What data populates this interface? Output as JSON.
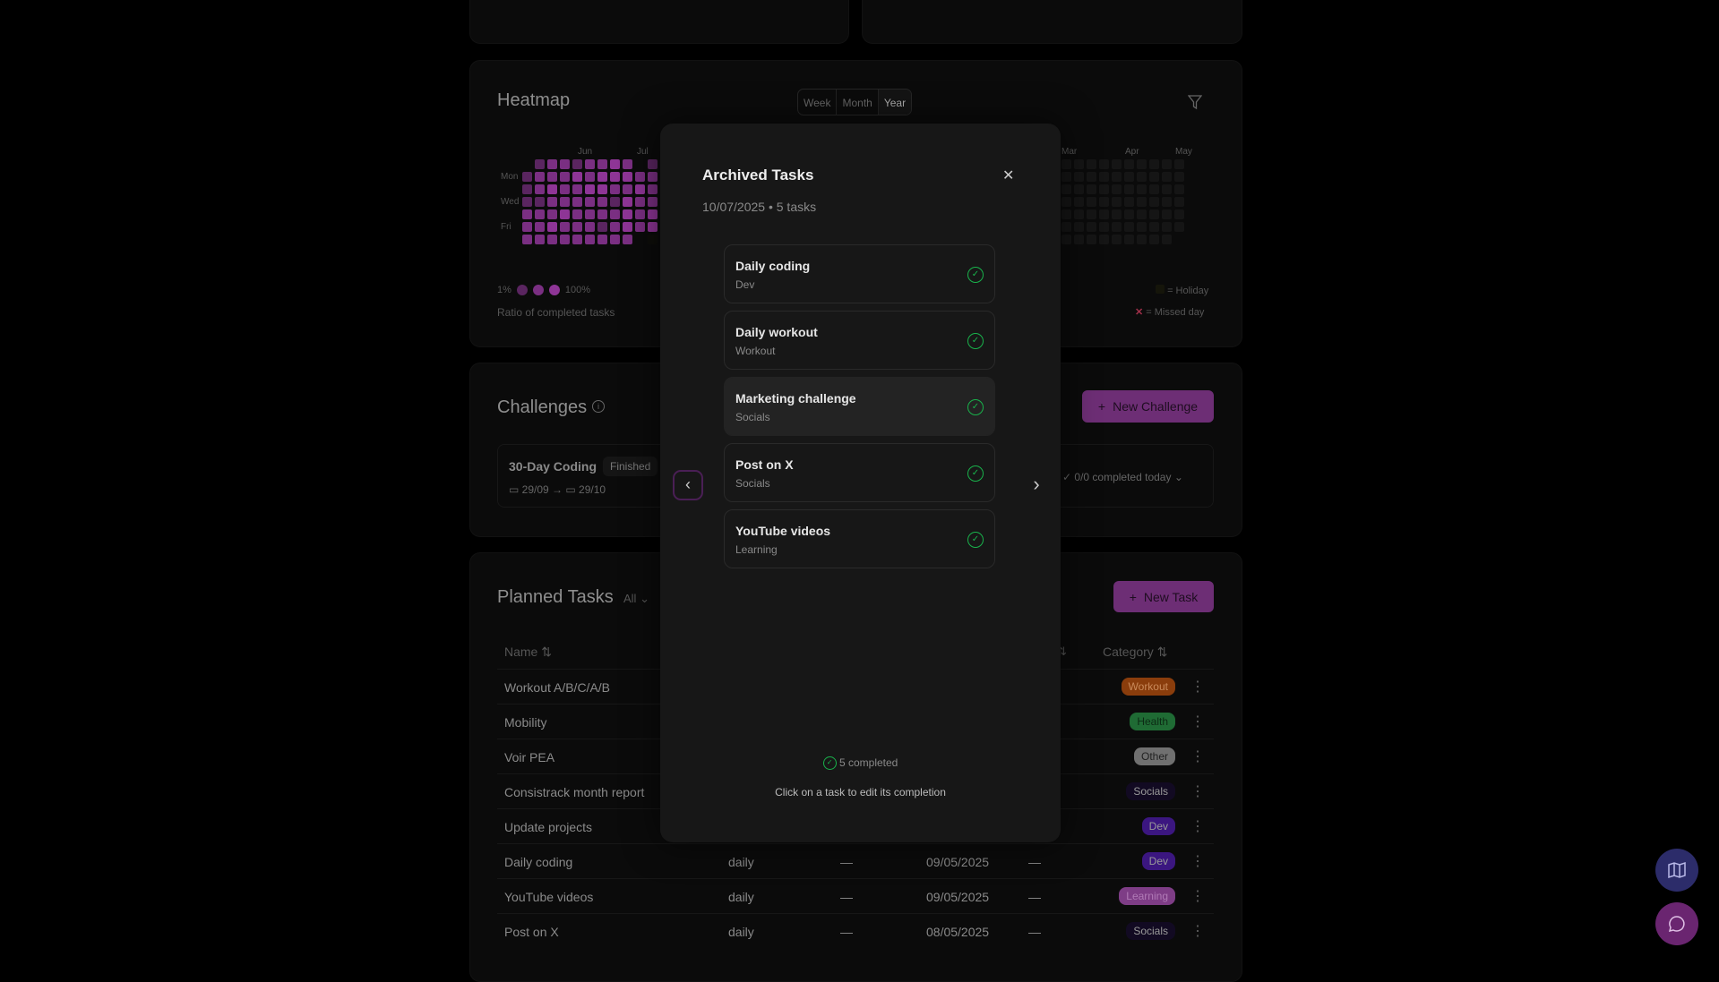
{
  "heatmap": {
    "title": "Heatmap",
    "range_options": [
      "Week",
      "Month",
      "Year"
    ],
    "selected_range": "Year",
    "months_left": [
      "Jun",
      "Jul"
    ],
    "months_right": [
      "Mar",
      "Apr",
      "May"
    ],
    "day_labels": [
      "Mon",
      "Wed",
      "Fri"
    ],
    "left_levels": [
      "01221223201",
      "12223233322",
      "12322332232",
      "11222221322",
      "22232222323",
      "22322212323",
      "2222222220x"
    ],
    "right_columns": 10,
    "legend_low": "1%",
    "legend_high": "100%",
    "legend_caption": "Ratio of completed tasks",
    "holiday_label": "= Holiday",
    "missed_label": "= Missed day",
    "colors": {
      "l1": "#5a2560",
      "l2": "#7a2f82",
      "l3": "#8e3596",
      "empty": "#151515",
      "missed": "#a0304a"
    }
  },
  "challenges": {
    "title": "Challenges",
    "new_button": "New Challenge",
    "item": {
      "name": "30-Day Coding",
      "status": "Finished",
      "start": "29/09",
      "end": "29/10",
      "today": "0/0 completed today"
    }
  },
  "planned": {
    "title": "Planned Tasks",
    "filter": "All",
    "new_button": "New Task",
    "columns": {
      "name": "Name",
      "category": "Category"
    },
    "rows": [
      {
        "name": "Workout A/B/C/A/B",
        "category": "Workout",
        "color": "#8a3d0c",
        "text": "#c98a5a"
      },
      {
        "name": "Mobility",
        "category": "Health",
        "color": "#1f6b34",
        "text": "#0c2a14"
      },
      {
        "name": "Voir PEA",
        "category": "Other",
        "color": "#707070",
        "text": "#222"
      },
      {
        "name": "Consistrack month report",
        "category": "Socials",
        "color": "#120a22",
        "text": "#999"
      },
      {
        "name": "Update projects",
        "category": "Dev",
        "color": "#3b1680",
        "text": "#999"
      },
      {
        "name": "Daily coding",
        "freq": "daily",
        "a": "—",
        "date": "09/05/2025",
        "b": "—",
        "category": "Dev",
        "color": "#3b1680",
        "text": "#999"
      },
      {
        "name": "YouTube videos",
        "freq": "daily",
        "a": "—",
        "date": "09/05/2025",
        "b": "—",
        "category": "Learning",
        "color": "#7e3d86",
        "text": "#b07ab6"
      },
      {
        "name": "Post on X",
        "freq": "daily",
        "a": "—",
        "date": "08/05/2025",
        "b": "—",
        "category": "Socials",
        "color": "#120a22",
        "text": "#999"
      }
    ]
  },
  "modal": {
    "title": "Archived Tasks",
    "subtitle": "10/07/2025 • 5 tasks",
    "tasks": [
      {
        "name": "Daily coding",
        "category": "Dev"
      },
      {
        "name": "Daily workout",
        "category": "Workout"
      },
      {
        "name": "Marketing challenge",
        "category": "Socials"
      },
      {
        "name": "Post on X",
        "category": "Socials"
      },
      {
        "name": "YouTube videos",
        "category": "Learning"
      }
    ],
    "completed": "5 completed",
    "hint": "Click on a task to edit its completion"
  }
}
